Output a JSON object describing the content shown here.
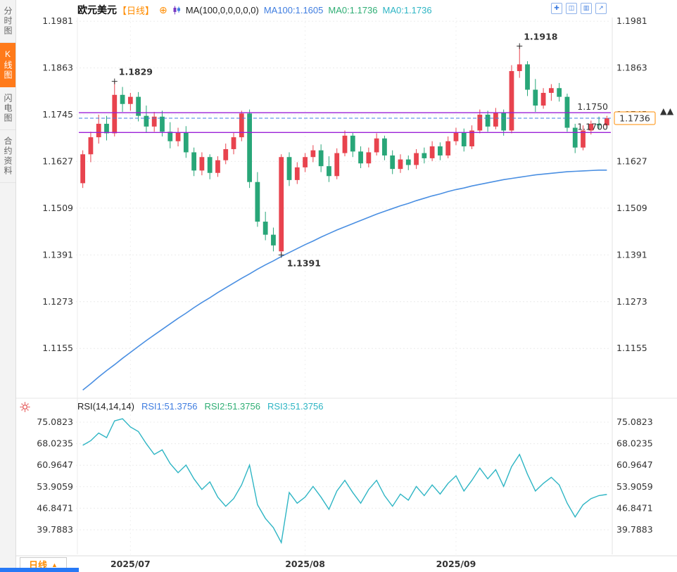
{
  "sidebar": {
    "items": [
      {
        "label": "分时图",
        "active": false
      },
      {
        "label": "K线图",
        "active": true
      },
      {
        "label": "闪电图",
        "active": false
      },
      {
        "label": "合约资料",
        "active": false
      }
    ]
  },
  "header": {
    "symbol": "欧元美元",
    "period_tag": "【日线】",
    "add_icon": "⊕",
    "ma_formula": "MA(100,0,0,0,0,0)",
    "legend": [
      {
        "text": "MA100:1.1605",
        "color": "#3f7de0"
      },
      {
        "text": "MA0:1.1736",
        "color": "#2fae74"
      },
      {
        "text": "MA0:1.1736",
        "color": "#2eb5c4"
      }
    ]
  },
  "toolbar": {
    "icons": [
      {
        "name": "pan-tool-icon",
        "glyph": "✚"
      },
      {
        "name": "single-chart-icon",
        "glyph": "◫"
      },
      {
        "name": "multi-chart-icon",
        "glyph": "▥"
      },
      {
        "name": "expand-icon",
        "glyph": "↗"
      }
    ]
  },
  "rsi_header": {
    "formula": "RSI(14,14,14)",
    "legend": [
      {
        "text": "RSI1:51.3756",
        "color": "#3f7de0"
      },
      {
        "text": "RSI2:51.3756",
        "color": "#2fae74"
      },
      {
        "text": "RSI3:51.3756",
        "color": "#2eb5c4"
      }
    ]
  },
  "bottom": {
    "period_label": "日线",
    "arrow": "▲"
  },
  "colors": {
    "up": "#e8434e",
    "down": "#28a678",
    "ma100": "#4a8fe2",
    "rsi_line": "#2eb5c4",
    "hline_purple": "#9b20d9",
    "accent_orange": "#ff8c00",
    "link_blue": "#3f7de0",
    "sidebar_active": "#ff7a1a"
  },
  "chart_data": {
    "type": "candlestick",
    "title": "欧元美元 日线",
    "price_axis_labels": [
      "1.1981",
      "1.1863",
      "1.1745",
      "1.1627",
      "1.1509",
      "1.1391",
      "1.1273",
      "1.1155"
    ],
    "axis_range": {
      "top": 1.199,
      "bottom": 1.104
    },
    "x_ticks": [
      {
        "label": "2025/07",
        "index": 6
      },
      {
        "label": "2025/08",
        "index": 28
      },
      {
        "label": "2025/09",
        "index": 47
      }
    ],
    "up_color": "#e8434e",
    "down_color": "#28a678",
    "ma100_color": "#4a8fe2",
    "candles": [
      [
        1.1572,
        1.1655,
        1.156,
        1.1645
      ],
      [
        1.1645,
        1.1702,
        1.1625,
        1.1688
      ],
      [
        1.1688,
        1.1745,
        1.1672,
        1.1722
      ],
      [
        1.1722,
        1.1742,
        1.168,
        1.1698
      ],
      [
        1.1698,
        1.1829,
        1.169,
        1.1795
      ],
      [
        1.1795,
        1.1815,
        1.1752,
        1.1772
      ],
      [
        1.1772,
        1.18,
        1.1755,
        1.179
      ],
      [
        1.179,
        1.1802,
        1.1728,
        1.1742
      ],
      [
        1.1742,
        1.1768,
        1.17,
        1.1715
      ],
      [
        1.1715,
        1.1752,
        1.1702,
        1.174
      ],
      [
        1.174,
        1.1755,
        1.169,
        1.1702
      ],
      [
        1.1702,
        1.1726,
        1.166,
        1.1678
      ],
      [
        1.1678,
        1.1712,
        1.1665,
        1.17
      ],
      [
        1.17,
        1.1716,
        1.1636,
        1.165
      ],
      [
        1.165,
        1.1662,
        1.159,
        1.1604
      ],
      [
        1.1604,
        1.165,
        1.1592,
        1.1638
      ],
      [
        1.1638,
        1.1645,
        1.1582,
        1.1598
      ],
      [
        1.1598,
        1.164,
        1.1588,
        1.163
      ],
      [
        1.163,
        1.1672,
        1.162,
        1.1658
      ],
      [
        1.1658,
        1.17,
        1.1645,
        1.1688
      ],
      [
        1.1688,
        1.1755,
        1.1678,
        1.1748
      ],
      [
        1.1748,
        1.1758,
        1.156,
        1.1575
      ],
      [
        1.1575,
        1.16,
        1.1462,
        1.1475
      ],
      [
        1.1475,
        1.15,
        1.1428,
        1.1442
      ],
      [
        1.1442,
        1.146,
        1.14,
        1.1415
      ],
      [
        1.14,
        1.1645,
        1.1391,
        1.1638
      ],
      [
        1.1638,
        1.165,
        1.1565,
        1.158
      ],
      [
        1.158,
        1.1625,
        1.157,
        1.1612
      ],
      [
        1.1612,
        1.1648,
        1.16,
        1.1638
      ],
      [
        1.1638,
        1.1668,
        1.1625,
        1.1655
      ],
      [
        1.1655,
        1.167,
        1.16,
        1.1615
      ],
      [
        1.1615,
        1.164,
        1.1575,
        1.159
      ],
      [
        1.159,
        1.166,
        1.1582,
        1.1648
      ],
      [
        1.1648,
        1.1705,
        1.164,
        1.1692
      ],
      [
        1.1692,
        1.17,
        1.1638,
        1.1652
      ],
      [
        1.1652,
        1.1665,
        1.161,
        1.1622
      ],
      [
        1.1622,
        1.1662,
        1.1612,
        1.165
      ],
      [
        1.165,
        1.1698,
        1.1642,
        1.1685
      ],
      [
        1.1685,
        1.1692,
        1.163,
        1.1642
      ],
      [
        1.1642,
        1.1655,
        1.1595,
        1.1608
      ],
      [
        1.1608,
        1.1645,
        1.1598,
        1.1632
      ],
      [
        1.1632,
        1.1642,
        1.1605,
        1.1618
      ],
      [
        1.1618,
        1.1658,
        1.1608,
        1.1648
      ],
      [
        1.1648,
        1.1662,
        1.1622,
        1.1635
      ],
      [
        1.1635,
        1.1678,
        1.1628,
        1.1665
      ],
      [
        1.1665,
        1.1675,
        1.163,
        1.1642
      ],
      [
        1.1642,
        1.169,
        1.1635,
        1.1678
      ],
      [
        1.1678,
        1.1712,
        1.1668,
        1.17
      ],
      [
        1.17,
        1.171,
        1.1652,
        1.1665
      ],
      [
        1.1665,
        1.1718,
        1.1658,
        1.1705
      ],
      [
        1.1705,
        1.1758,
        1.1698,
        1.1745
      ],
      [
        1.1745,
        1.1755,
        1.1702,
        1.1715
      ],
      [
        1.1715,
        1.1762,
        1.1708,
        1.175
      ],
      [
        1.175,
        1.1758,
        1.1692,
        1.1705
      ],
      [
        1.1705,
        1.187,
        1.1698,
        1.1855
      ],
      [
        1.1855,
        1.1918,
        1.1838,
        1.1872
      ],
      [
        1.1872,
        1.188,
        1.1792,
        1.1808
      ],
      [
        1.1808,
        1.1835,
        1.1752,
        1.1768
      ],
      [
        1.1768,
        1.1812,
        1.176,
        1.18
      ],
      [
        1.18,
        1.1822,
        1.178,
        1.1812
      ],
      [
        1.1812,
        1.1825,
        1.1778,
        1.179
      ],
      [
        1.179,
        1.1798,
        1.1702,
        1.1712
      ],
      [
        1.1712,
        1.1722,
        1.1648,
        1.1662
      ],
      [
        1.1662,
        1.1718,
        1.1655,
        1.1705
      ],
      [
        1.1705,
        1.173,
        1.1695,
        1.1722
      ],
      [
        1.1722,
        1.174,
        1.1708,
        1.1718
      ],
      [
        1.1718,
        1.1742,
        1.1712,
        1.1736
      ]
    ],
    "ma100": [
      1.105,
      1.1066,
      1.1083,
      1.1099,
      1.1114,
      1.113,
      1.1145,
      1.116,
      1.1175,
      1.1189,
      1.1203,
      1.1217,
      1.1231,
      1.1244,
      1.1258,
      1.1271,
      1.1283,
      1.1296,
      1.1308,
      1.132,
      1.1332,
      1.1343,
      1.1355,
      1.1366,
      1.1376,
      1.1387,
      1.1397,
      1.1407,
      1.1417,
      1.1426,
      1.1436,
      1.1445,
      1.1454,
      1.1462,
      1.147,
      1.1478,
      1.1486,
      1.1494,
      1.1501,
      1.1508,
      1.1515,
      1.1521,
      1.1528,
      1.1534,
      1.154,
      1.1545,
      1.1551,
      1.1556,
      1.156,
      1.1565,
      1.1569,
      1.1573,
      1.1577,
      1.1581,
      1.1584,
      1.1587,
      1.159,
      1.1593,
      1.1595,
      1.1597,
      1.1599,
      1.1601,
      1.1602,
      1.1603,
      1.1604,
      1.1605,
      1.1605
    ],
    "hlines": [
      {
        "price": 1.175,
        "label": "1.1750",
        "line_color": "#9b20d9",
        "label_color": "#3f7de0"
      },
      {
        "price": 1.17,
        "label": "1.1700",
        "line_color": "#9b20d9",
        "label_color": "#9b20d9"
      }
    ],
    "current_price": {
      "value": "1.1736",
      "line_color": "#3f7de0",
      "box_color": "#ff8c00",
      "arrows": "▲▲"
    },
    "annotations": [
      {
        "text": "1.1829",
        "index": 4,
        "price": 1.1829,
        "color": "#d9303e",
        "pos": "above-right"
      },
      {
        "text": "1.1918",
        "index": 55,
        "price": 1.1918,
        "color": "#d9303e",
        "pos": "above-right"
      },
      {
        "text": "1.1391",
        "index": 25,
        "price": 1.1391,
        "color": "#28a678",
        "pos": "below-right"
      }
    ],
    "rsi": {
      "axis_labels": [
        "75.0823",
        "68.0235",
        "60.9647",
        "53.9059",
        "46.8471",
        "39.7883"
      ],
      "color": "#2eb5c4",
      "values": [
        67.5,
        69.0,
        71.5,
        70.0,
        75.5,
        76.2,
        73.5,
        72.0,
        68.0,
        64.5,
        66.0,
        61.5,
        58.5,
        61.0,
        56.5,
        53.0,
        55.5,
        50.5,
        47.5,
        50.0,
        54.5,
        61.0,
        48.0,
        43.5,
        40.5,
        35.6,
        52.0,
        48.5,
        50.5,
        54.0,
        50.5,
        46.5,
        52.5,
        56.0,
        52.0,
        48.5,
        53.0,
        56.0,
        51.0,
        47.5,
        51.5,
        49.5,
        54.0,
        51.0,
        54.5,
        51.5,
        55.0,
        57.5,
        52.5,
        56.0,
        60.0,
        56.5,
        59.5,
        54.0,
        60.5,
        64.5,
        58.0,
        52.5,
        55.0,
        57.0,
        54.5,
        48.5,
        44.0,
        48.0,
        50.0,
        51.0,
        51.38
      ]
    }
  }
}
